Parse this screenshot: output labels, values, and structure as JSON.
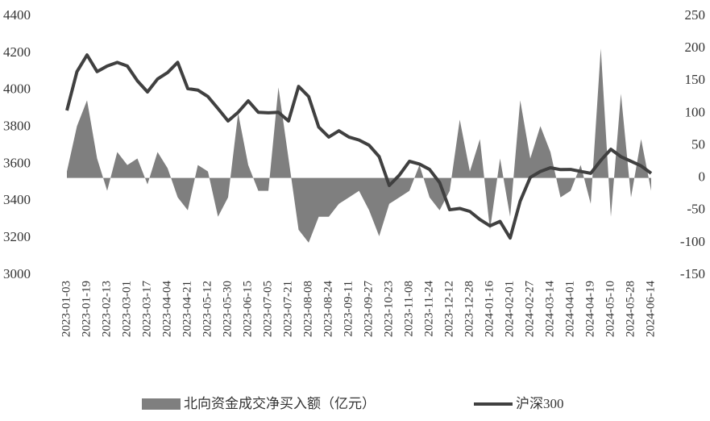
{
  "chart_data": {
    "type": "line",
    "categories": [
      "2023-01-03",
      null,
      "2023-01-19",
      null,
      "2023-02-13",
      null,
      "2023-03-01",
      null,
      "2023-03-17",
      null,
      "2023-04-04",
      null,
      "2023-04-21",
      null,
      "2023-05-12",
      null,
      "2023-05-30",
      null,
      "2023-06-15",
      null,
      "2023-07-05",
      null,
      "2023-07-21",
      null,
      "2023-08-08",
      null,
      "2023-08-24",
      null,
      "2023-09-11",
      null,
      "2023-09-27",
      null,
      "2023-10-23",
      null,
      "2023-11-08",
      null,
      "2023-11-24",
      null,
      "2023-12-12",
      null,
      "2023-12-28",
      null,
      "2024-01-16",
      null,
      "2024-02-01",
      null,
      "2024-02-27",
      null,
      "2024-03-14",
      null,
      "2024-04-01",
      null,
      "2024-04-19",
      null,
      "2024-05-10",
      null,
      "2024-05-28",
      null,
      "2024-06-14"
    ],
    "series": [
      {
        "name": "北向资金成交净买入额（亿元）",
        "type": "area",
        "axis": "y2",
        "color": "#7f7f7f",
        "values": [
          10,
          80,
          120,
          30,
          -20,
          40,
          20,
          30,
          -10,
          40,
          15,
          -30,
          -50,
          20,
          10,
          -60,
          -30,
          100,
          20,
          -20,
          -20,
          140,
          30,
          -80,
          -100,
          -60,
          -60,
          -40,
          -30,
          -20,
          -50,
          -90,
          -40,
          -30,
          -20,
          20,
          -30,
          -50,
          -20,
          90,
          10,
          60,
          -80,
          30,
          -60,
          120,
          30,
          80,
          40,
          -30,
          -20,
          20,
          -40,
          200,
          -60,
          130,
          -30,
          60,
          -20
        ]
      },
      {
        "name": "沪深300",
        "type": "line",
        "color": "#404040",
        "values": [
          3890,
          4100,
          4190,
          4100,
          4130,
          4150,
          4130,
          4050,
          3990,
          4060,
          4095,
          4150,
          4008,
          4000,
          3965,
          3900,
          3833,
          3880,
          3942,
          3880,
          3877,
          3880,
          3833,
          4020,
          3965,
          3800,
          3746,
          3780,
          3746,
          3730,
          3702,
          3640,
          3484,
          3540,
          3615,
          3600,
          3571,
          3500,
          3353,
          3360,
          3344,
          3300,
          3266,
          3290,
          3200,
          3400,
          3528,
          3560,
          3580,
          3570,
          3571,
          3560,
          3550,
          3620,
          3680,
          3640,
          3615,
          3590,
          3550
        ]
      }
    ],
    "ylim": [
      3000,
      4400
    ],
    "yticks": [
      3000,
      3200,
      3400,
      3600,
      3800,
      4000,
      4200,
      4400
    ],
    "y2lim": [
      -150,
      250
    ],
    "y2ticks": [
      -150,
      -100,
      -50,
      0,
      50,
      100,
      150,
      200,
      250
    ],
    "legend": "bottom"
  }
}
